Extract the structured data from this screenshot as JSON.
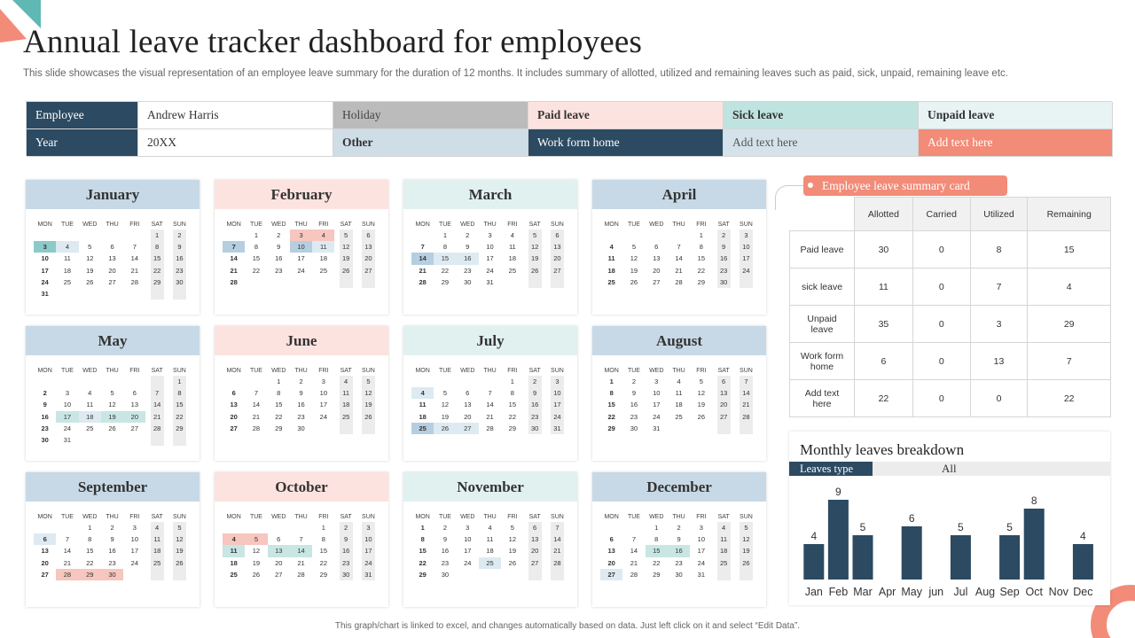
{
  "title": "Annual leave tracker dashboard for employees",
  "subtitle": "This slide showcases the visual representation of an employee leave summary for the duration of 12 months. It includes summary of allotted, utilized and remaining leaves such as paid, sick, unpaid, remaining leave etc.",
  "legend": {
    "employee_label": "Employee",
    "employee_value": "Andrew  Harris",
    "year_label": "Year",
    "year_value": "20XX",
    "holiday": "Holiday",
    "paid_leave": "Paid leave",
    "sick_leave": "Sick leave",
    "unpaid_leave": "Unpaid leave",
    "other": "Other",
    "work_from_home": "Work form home",
    "add_text_1": "Add  text here",
    "add_text_2": "Add  text here"
  },
  "colors": {
    "navy": "#2c4a61",
    "holiday": "#bbbbbb",
    "paid": "#fde3df",
    "sick": "#bfe3df",
    "unpaid": "#e7f4f3",
    "other": "#cfdde7",
    "add_text_1": "#d5e2ea",
    "add_text_2": "#f28b78",
    "accent": "#f28b78"
  },
  "day_names": [
    "MON",
    "TUE",
    "WED",
    "THU",
    "FRI",
    "SAT",
    "SUN"
  ],
  "months": [
    {
      "name": "January",
      "header_color": "#c7d9e6",
      "weeks": [
        [
          "",
          "",
          "",
          "",
          "",
          "1",
          "2"
        ],
        [
          "3",
          "4",
          "5",
          "6",
          "7",
          "8",
          "9"
        ],
        [
          "10",
          "11",
          "12",
          "13",
          "14",
          "15",
          "16"
        ],
        [
          "17",
          "18",
          "19",
          "20",
          "21",
          "22",
          "23"
        ],
        [
          "24",
          "25",
          "26",
          "27",
          "28",
          "29",
          "30"
        ],
        [
          "31",
          "",
          "",
          "",
          "",
          "",
          ""
        ]
      ],
      "marks": {
        "3": "teal",
        "4": "hl"
      }
    },
    {
      "name": "February",
      "header_color": "#fde3df",
      "weeks": [
        [
          "",
          "1",
          "2",
          "3",
          "4",
          "5",
          "6"
        ],
        [
          "7",
          "8",
          "9",
          "10",
          "11",
          "12",
          "13"
        ],
        [
          "14",
          "15",
          "16",
          "17",
          "18",
          "19",
          "20"
        ],
        [
          "21",
          "22",
          "23",
          "24",
          "25",
          "26",
          "27"
        ],
        [
          "28",
          "",
          "",
          "",
          "",
          "",
          ""
        ]
      ],
      "marks": {
        "3": "pink",
        "4": "pink",
        "7": "blue",
        "10": "blue",
        "11": "hl"
      }
    },
    {
      "name": "March",
      "header_color": "#e1f1f0",
      "weeks": [
        [
          "",
          "1",
          "2",
          "3",
          "4",
          "5",
          "6"
        ],
        [
          "7",
          "8",
          "9",
          "10",
          "11",
          "12",
          "13"
        ],
        [
          "14",
          "15",
          "16",
          "17",
          "18",
          "19",
          "20"
        ],
        [
          "21",
          "22",
          "23",
          "24",
          "25",
          "26",
          "27"
        ],
        [
          "28",
          "29",
          "30",
          "31",
          "",
          "",
          ""
        ]
      ],
      "marks": {
        "14": "blue",
        "15": "hl",
        "16": "hl"
      }
    },
    {
      "name": "April",
      "header_color": "#c7d9e6",
      "weeks": [
        [
          "",
          "",
          "",
          "",
          "1",
          "2",
          "3"
        ],
        [
          "4",
          "5",
          "6",
          "7",
          "8",
          "9",
          "10"
        ],
        [
          "11",
          "12",
          "13",
          "14",
          "15",
          "16",
          "17"
        ],
        [
          "18",
          "19",
          "20",
          "21",
          "22",
          "23",
          "24"
        ],
        [
          "25",
          "26",
          "27",
          "28",
          "29",
          "30",
          ""
        ]
      ],
      "marks": {}
    },
    {
      "name": "May",
      "header_color": "#c7d9e6",
      "weeks": [
        [
          "",
          "",
          "",
          "",
          "",
          "",
          "1"
        ],
        [
          "2",
          "3",
          "4",
          "5",
          "6",
          "7",
          "8"
        ],
        [
          "9",
          "10",
          "11",
          "12",
          "13",
          "14",
          "15"
        ],
        [
          "16",
          "17",
          "18",
          "19",
          "20",
          "21",
          "22"
        ],
        [
          "23",
          "24",
          "25",
          "26",
          "27",
          "28",
          "29"
        ],
        [
          "30",
          "31",
          "",
          "",
          "",
          "",
          ""
        ]
      ],
      "marks": {
        "17": "mint",
        "18": "hl",
        "19": "mint",
        "20": "mint"
      }
    },
    {
      "name": "June",
      "header_color": "#fde3df",
      "weeks": [
        [
          "",
          "",
          "1",
          "2",
          "3",
          "4",
          "5"
        ],
        [
          "6",
          "7",
          "8",
          "9",
          "10",
          "11",
          "12"
        ],
        [
          "13",
          "14",
          "15",
          "16",
          "17",
          "18",
          "19"
        ],
        [
          "20",
          "21",
          "22",
          "23",
          "24",
          "25",
          "26"
        ],
        [
          "27",
          "28",
          "29",
          "30",
          "",
          "",
          ""
        ]
      ],
      "marks": {}
    },
    {
      "name": "July",
      "header_color": "#e1f1f0",
      "weeks": [
        [
          "",
          "",
          "",
          "",
          "1",
          "2",
          "3"
        ],
        [
          "4",
          "5",
          "6",
          "7",
          "8",
          "9",
          "10"
        ],
        [
          "11",
          "12",
          "13",
          "14",
          "15",
          "16",
          "17"
        ],
        [
          "18",
          "19",
          "20",
          "21",
          "22",
          "23",
          "24"
        ],
        [
          "25",
          "26",
          "27",
          "28",
          "29",
          "30",
          "31"
        ]
      ],
      "marks": {
        "4": "hl",
        "25": "blue",
        "26": "hl",
        "27": "hl"
      }
    },
    {
      "name": "August",
      "header_color": "#c7d9e6",
      "weeks": [
        [
          "1",
          "2",
          "3",
          "4",
          "5",
          "6",
          "7"
        ],
        [
          "8",
          "9",
          "10",
          "11",
          "12",
          "13",
          "14"
        ],
        [
          "15",
          "16",
          "17",
          "18",
          "19",
          "20",
          "21"
        ],
        [
          "22",
          "23",
          "24",
          "25",
          "26",
          "27",
          "28"
        ],
        [
          "29",
          "30",
          "31",
          "",
          "",
          "",
          ""
        ]
      ],
      "marks": {}
    },
    {
      "name": "September",
      "header_color": "#c7d9e6",
      "weeks": [
        [
          "",
          "",
          "1",
          "2",
          "3",
          "4",
          "5"
        ],
        [
          "6",
          "7",
          "8",
          "9",
          "10",
          "11",
          "12"
        ],
        [
          "13",
          "14",
          "15",
          "16",
          "17",
          "18",
          "19"
        ],
        [
          "20",
          "21",
          "22",
          "23",
          "24",
          "25",
          "26"
        ],
        [
          "27",
          "28",
          "29",
          "30",
          "",
          "",
          ""
        ]
      ],
      "marks": {
        "6": "hl",
        "28": "pink",
        "29": "pink",
        "30": "pink"
      }
    },
    {
      "name": "October",
      "header_color": "#fde3df",
      "weeks": [
        [
          "",
          "",
          "",
          "",
          "1",
          "2",
          "3"
        ],
        [
          "4",
          "5",
          "6",
          "7",
          "8",
          "9",
          "10"
        ],
        [
          "11",
          "12",
          "13",
          "14",
          "15",
          "16",
          "17"
        ],
        [
          "18",
          "19",
          "20",
          "21",
          "22",
          "23",
          "24"
        ],
        [
          "25",
          "26",
          "27",
          "28",
          "29",
          "30",
          "31"
        ]
      ],
      "marks": {
        "4": "pink",
        "5": "pink",
        "11": "mint",
        "13": "mint",
        "14": "mint"
      }
    },
    {
      "name": "November",
      "header_color": "#e1f1f0",
      "weeks": [
        [
          "1",
          "2",
          "3",
          "4",
          "5",
          "6",
          "7"
        ],
        [
          "8",
          "9",
          "10",
          "11",
          "12",
          "13",
          "14"
        ],
        [
          "15",
          "16",
          "17",
          "18",
          "19",
          "20",
          "21"
        ],
        [
          "22",
          "23",
          "24",
          "25",
          "26",
          "27",
          "28"
        ],
        [
          "29",
          "30",
          "",
          "",
          "",
          "",
          ""
        ]
      ],
      "marks": {
        "25": "hl"
      }
    },
    {
      "name": "December",
      "header_color": "#c7d9e6",
      "weeks": [
        [
          "",
          "",
          "1",
          "2",
          "3",
          "4",
          "5"
        ],
        [
          "6",
          "7",
          "8",
          "9",
          "10",
          "11",
          "12"
        ],
        [
          "13",
          "14",
          "15",
          "16",
          "17",
          "18",
          "19"
        ],
        [
          "20",
          "21",
          "22",
          "23",
          "24",
          "25",
          "26"
        ],
        [
          "27",
          "28",
          "29",
          "30",
          "31",
          "",
          ""
        ]
      ],
      "marks": {
        "15": "mint",
        "16": "mint",
        "27": "hl"
      }
    }
  ],
  "summary": {
    "tag": "Employee  leave  summary card",
    "columns": [
      "Allotted",
      "Carried",
      "Utilized",
      "Remaining"
    ],
    "rows": [
      {
        "label": "Paid leave",
        "values": [
          "30",
          "0",
          "8",
          "15"
        ]
      },
      {
        "label": "sick leave",
        "values": [
          "11",
          "0",
          "7",
          "4"
        ]
      },
      {
        "label": "Unpaid leave",
        "values": [
          "35",
          "0",
          "3",
          "29"
        ]
      },
      {
        "label": "Work form home",
        "values": [
          "6",
          "0",
          "13",
          "7"
        ]
      },
      {
        "label": "Add text here",
        "values": [
          "22",
          "0",
          "0",
          "22"
        ]
      }
    ]
  },
  "breakdown": {
    "title": "Monthly  leaves breakdown",
    "filter_label": "Leaves type",
    "filter_value": "All"
  },
  "chart_data": {
    "type": "bar",
    "title": "Monthly  leaves breakdown",
    "categories": [
      "Jan",
      "Feb",
      "Mar",
      "Apr",
      "May",
      "jun",
      "Jul",
      "Aug",
      "Sep",
      "Oct",
      "Nov",
      "Dec"
    ],
    "values": [
      4,
      9,
      5,
      0,
      6,
      0,
      5,
      0,
      5,
      8,
      0,
      4
    ],
    "value_labels": [
      "4",
      "9",
      "5",
      "",
      "6",
      "",
      "5",
      "",
      "5",
      "8",
      "",
      "4"
    ],
    "ylim": [
      0,
      10
    ],
    "bar_color": "#2c4a61",
    "grid": false
  },
  "footer": "This graph/chart is linked to excel, and changes automatically based on data. Just left click on it and select “Edit Data”."
}
